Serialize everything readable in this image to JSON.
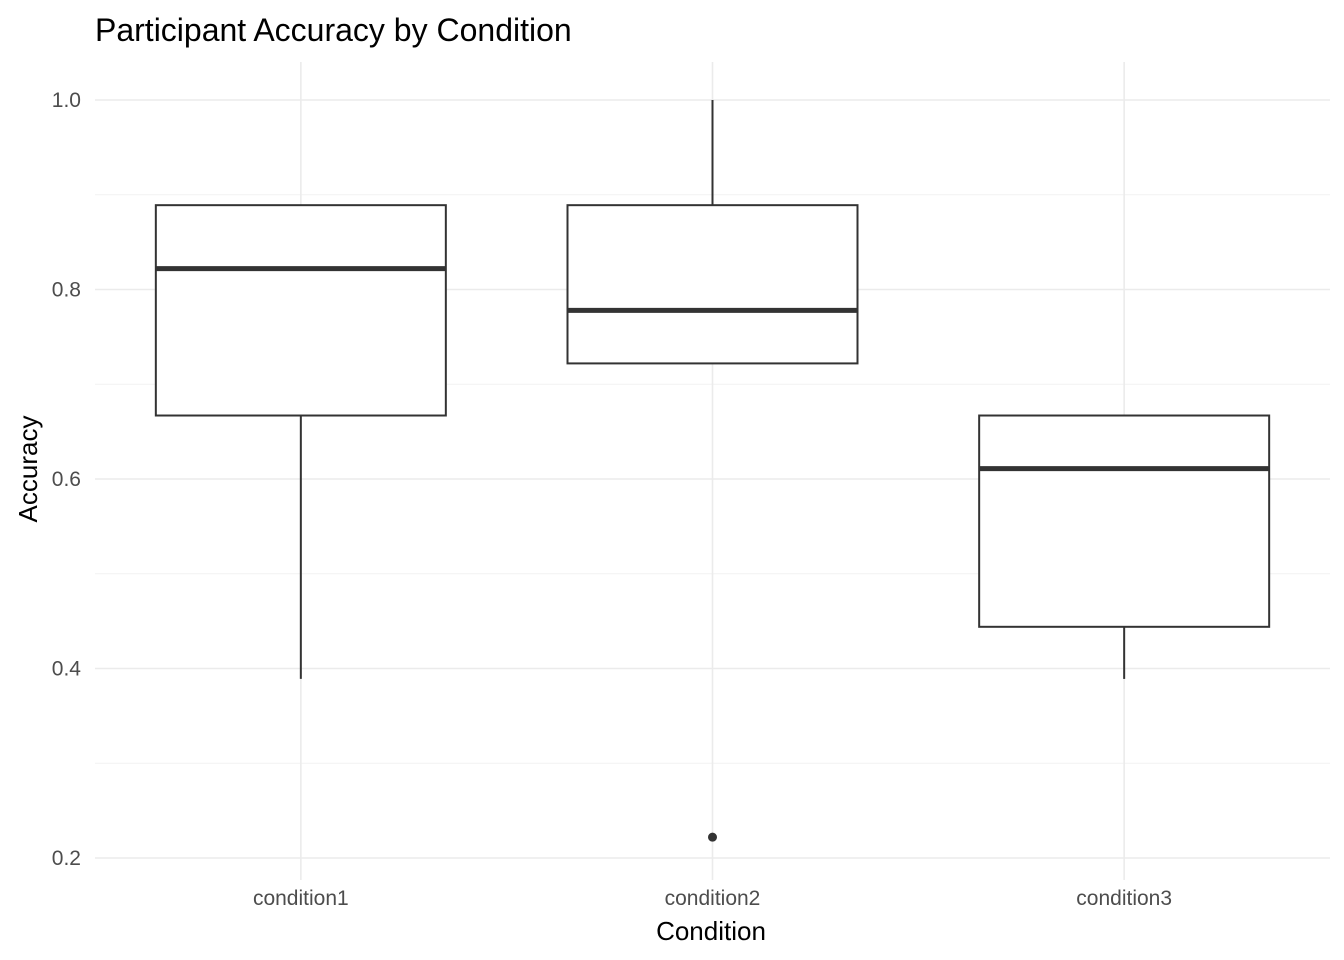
{
  "chart_data": {
    "type": "boxplot",
    "title": "Participant Accuracy by Condition",
    "xlabel": "Condition",
    "ylabel": "Accuracy",
    "categories": [
      "condition1",
      "condition2",
      "condition3"
    ],
    "ylim": [
      0.18,
      1.04
    ],
    "y_ticks": [
      0.2,
      0.4,
      0.6,
      0.8,
      1.0
    ],
    "y_tick_labels": [
      "0.2",
      "0.4",
      "0.6",
      "0.8",
      "1.0"
    ],
    "y_minor_ticks": [
      0.3,
      0.5,
      0.7,
      0.9
    ],
    "grid": true,
    "boxes": [
      {
        "category": "condition1",
        "whisker_low": 0.389,
        "q1": 0.667,
        "median": 0.822,
        "q3": 0.889,
        "whisker_high": 0.889,
        "outliers": []
      },
      {
        "category": "condition2",
        "whisker_low": 0.722,
        "q1": 0.722,
        "median": 0.778,
        "q3": 0.889,
        "whisker_high": 1.0,
        "outliers": [
          0.222
        ]
      },
      {
        "category": "condition3",
        "whisker_low": 0.389,
        "q1": 0.444,
        "median": 0.611,
        "q3": 0.667,
        "whisker_high": 0.667,
        "outliers": []
      }
    ],
    "colors": {
      "box_stroke": "#333333",
      "grid": "#ebebeb",
      "tick_text": "#4d4d4d"
    }
  }
}
